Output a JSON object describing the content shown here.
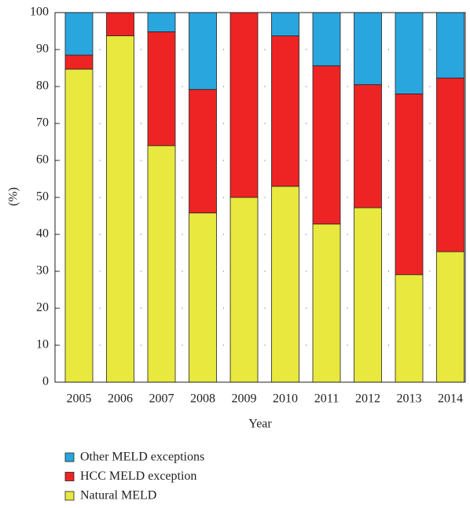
{
  "chart_data": {
    "type": "stacked_bar",
    "x_label": "Year",
    "y_label": "(%)",
    "categories": [
      "2005",
      "2006",
      "2007",
      "2008",
      "2009",
      "2010",
      "2011",
      "2012",
      "2013",
      "2014"
    ],
    "series": [
      {
        "name": "Natural MELD",
        "color": "#e8e83e",
        "values": [
          84.7,
          93.7,
          64,
          45.8,
          50,
          53,
          42.8,
          47.2,
          29.1,
          35.3
        ]
      },
      {
        "name": "HCC MELD exception",
        "color": "#ee2424",
        "values": [
          3.8,
          6.3,
          30.8,
          33.4,
          50,
          40.7,
          42.8,
          33.3,
          48.9,
          47
        ]
      },
      {
        "name": "Other MELD exceptions",
        "color": "#2aa6df",
        "values": [
          11.5,
          0,
          5.2,
          20.8,
          0,
          6.3,
          14.4,
          19.5,
          22,
          17.7
        ]
      }
    ],
    "ylim": [
      0,
      100
    ],
    "yticks": [
      0,
      10,
      20,
      30,
      40,
      50,
      60,
      70,
      80,
      90,
      100
    ],
    "grid": true
  }
}
